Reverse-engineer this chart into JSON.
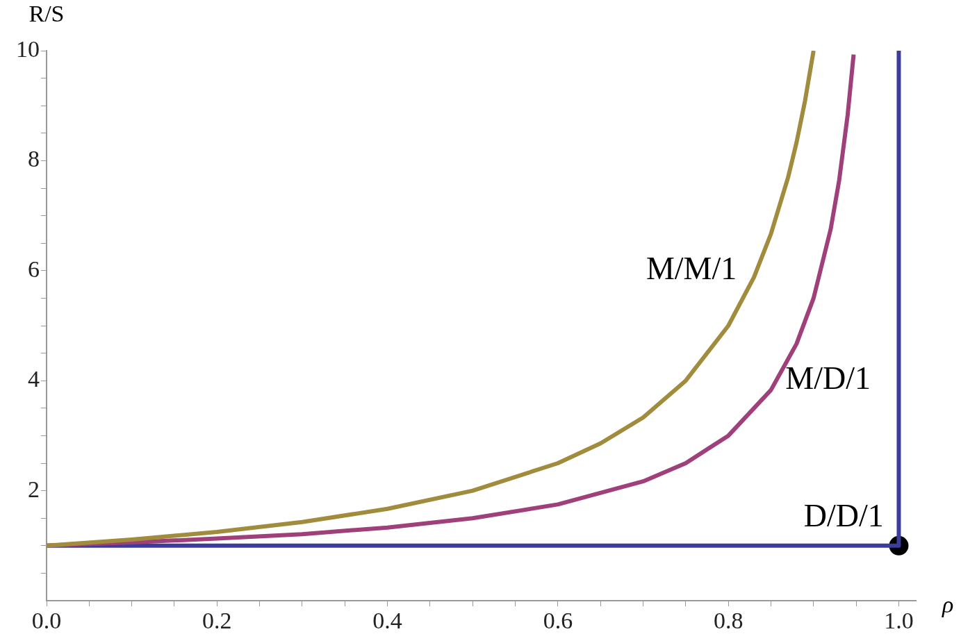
{
  "chart_data": {
    "type": "line",
    "xlabel": "ρ",
    "ylabel": "R/S",
    "xlim": [
      0,
      1.02
    ],
    "ylim": [
      0,
      10
    ],
    "xticks": [
      {
        "value": 0,
        "label": "0.0"
      },
      {
        "value": 0.05,
        "label": null
      },
      {
        "value": 0.1,
        "label": null
      },
      {
        "value": 0.15,
        "label": null
      },
      {
        "value": 0.2,
        "label": "0.2"
      },
      {
        "value": 0.25,
        "label": null
      },
      {
        "value": 0.3,
        "label": null
      },
      {
        "value": 0.35,
        "label": null
      },
      {
        "value": 0.4,
        "label": "0.4"
      },
      {
        "value": 0.45,
        "label": null
      },
      {
        "value": 0.5,
        "label": null
      },
      {
        "value": 0.55,
        "label": null
      },
      {
        "value": 0.6,
        "label": "0.6"
      },
      {
        "value": 0.65,
        "label": null
      },
      {
        "value": 0.7,
        "label": null
      },
      {
        "value": 0.75,
        "label": null
      },
      {
        "value": 0.8,
        "label": "0.8"
      },
      {
        "value": 0.85,
        "label": null
      },
      {
        "value": 0.9,
        "label": null
      },
      {
        "value": 0.95,
        "label": null
      },
      {
        "value": 1,
        "label": "1.0"
      }
    ],
    "yticks": [
      {
        "value": 0.5,
        "label": null
      },
      {
        "value": 1,
        "label": null
      },
      {
        "value": 1.5,
        "label": null
      },
      2,
      {
        "value": 2.5,
        "label": null
      },
      {
        "value": 3,
        "label": null
      },
      {
        "value": 3.5,
        "label": null
      },
      4,
      {
        "value": 4.5,
        "label": null
      },
      {
        "value": 5,
        "label": null
      },
      {
        "value": 5.5,
        "label": null
      },
      6,
      {
        "value": 6.5,
        "label": null
      },
      {
        "value": 7,
        "label": null
      },
      {
        "value": 7.5,
        "label": null
      },
      8,
      {
        "value": 8.5,
        "label": null
      },
      {
        "value": 9,
        "label": null
      },
      {
        "value": 9.5,
        "label": null
      },
      10
    ],
    "grid": false,
    "legend": false,
    "line_style": "solid",
    "marker": "none",
    "series": [
      {
        "name": "M/M/1",
        "color": "#a08c3c",
        "x": [
          0,
          0.1,
          0.2,
          0.3,
          0.4,
          0.5,
          0.6,
          0.65,
          0.7,
          0.75,
          0.8,
          0.83,
          0.85,
          0.87,
          0.88,
          0.89,
          0.9
        ],
        "values": [
          1,
          1.11,
          1.25,
          1.43,
          1.67,
          2,
          2.5,
          2.86,
          3.33,
          4,
          5,
          5.88,
          6.67,
          7.69,
          8.33,
          9.09,
          10
        ]
      },
      {
        "name": "M/D/1",
        "color": "#a0407a",
        "x": [
          0,
          0.1,
          0.2,
          0.3,
          0.4,
          0.5,
          0.6,
          0.7,
          0.75,
          0.8,
          0.85,
          0.88,
          0.9,
          0.92,
          0.93,
          0.94,
          0.947
        ],
        "values": [
          1,
          1.06,
          1.13,
          1.21,
          1.33,
          1.5,
          1.75,
          2.17,
          2.5,
          3,
          3.83,
          4.67,
          5.5,
          6.75,
          7.64,
          8.83,
          9.93
        ]
      },
      {
        "name": "D/D/1",
        "color": "#3c3c9c",
        "x": [
          0,
          1,
          1
        ],
        "values": [
          1,
          1,
          10
        ]
      },
      {
        "type": "scatter",
        "marker": "circle",
        "color": "#000000",
        "x": [
          1
        ],
        "values": [
          1
        ]
      }
    ]
  }
}
